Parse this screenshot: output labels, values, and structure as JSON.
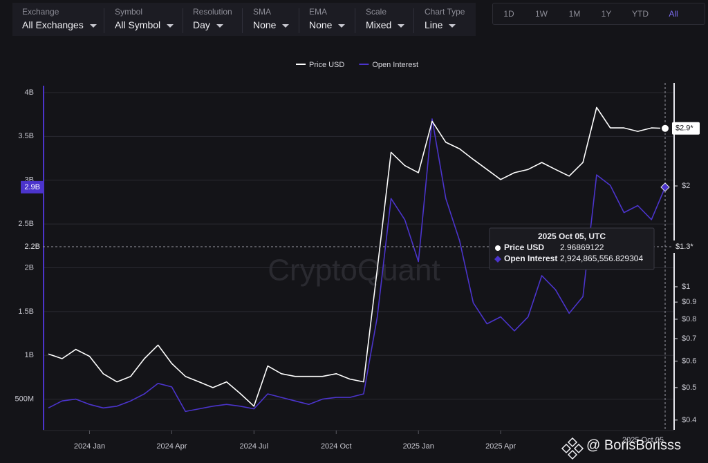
{
  "toolbar": {
    "filters": [
      {
        "label": "Exchange",
        "value": "All Exchanges"
      },
      {
        "label": "Symbol",
        "value": "All Symbol"
      },
      {
        "label": "Resolution",
        "value": "Day"
      },
      {
        "label": "SMA",
        "value": "None"
      },
      {
        "label": "EMA",
        "value": "None"
      },
      {
        "label": "Scale",
        "value": "Mixed"
      },
      {
        "label": "Chart Type",
        "value": "Line"
      }
    ],
    "ranges": [
      "1D",
      "1W",
      "1M",
      "1Y",
      "YTD",
      "All"
    ],
    "active_range": 5
  },
  "chart_data": {
    "type": "line",
    "watermark": "CryptoQuant",
    "credit": "@ BorisBorisss",
    "categories": [
      null,
      null,
      null,
      "2024 Jan",
      null,
      null,
      null,
      null,
      null,
      "2024 Apr",
      null,
      null,
      null,
      null,
      null,
      "2024 Jul",
      null,
      null,
      null,
      null,
      null,
      "2024 Oct",
      null,
      null,
      null,
      null,
      null,
      "2025 Jan",
      null,
      null,
      null,
      null,
      null,
      "2025 Apr",
      null,
      null,
      null,
      null,
      null,
      null,
      null,
      null,
      null,
      null,
      null,
      null
    ],
    "series": [
      {
        "name": "Price USD",
        "color": "#ffffff",
        "axis": "y2",
        "values": [
          0.63,
          0.61,
          0.65,
          0.62,
          0.55,
          0.52,
          0.54,
          0.61,
          0.67,
          0.59,
          0.54,
          0.52,
          0.5,
          0.52,
          0.48,
          0.44,
          0.58,
          0.55,
          0.54,
          0.54,
          0.54,
          0.55,
          0.53,
          0.52,
          1.13,
          2.52,
          2.3,
          2.19,
          3.12,
          2.7,
          2.58,
          2.4,
          2.24,
          2.09,
          2.19,
          2.24,
          2.35,
          2.24,
          2.14,
          2.35,
          3.43,
          2.98,
          2.98,
          2.91,
          2.98,
          2.97
        ]
      },
      {
        "name": "Open Interest",
        "color": "#4b34cc",
        "values": [
          400000000,
          480000000,
          500000000,
          440000000,
          400000000,
          420000000,
          480000000,
          560000000,
          680000000,
          640000000,
          360000000,
          390000000,
          420000000,
          440000000,
          420000000,
          390000000,
          560000000,
          520000000,
          480000000,
          440000000,
          500000000,
          520000000,
          520000000,
          560000000,
          1440000000,
          2790000000,
          2550000000,
          2070000000,
          3700000000,
          2790000000,
          2310000000,
          1600000000,
          1360000000,
          1440000000,
          1280000000,
          1440000000,
          1910000000,
          1750000000,
          1480000000,
          1670000000,
          3060000000,
          2940000000,
          2630000000,
          2710000000,
          2550000000,
          2920000000
        ]
      }
    ],
    "ylim": [
      150000000,
      4110000000
    ],
    "yticks": [
      {
        "value": 500000000,
        "label": "500M"
      },
      {
        "value": 1000000000,
        "label": "1B"
      },
      {
        "value": 1500000000,
        "label": "1.5B"
      },
      {
        "value": 2000000000,
        "label": "2B"
      },
      {
        "value": 2500000000,
        "label": "2.5B"
      },
      {
        "value": 3000000000,
        "label": "3B"
      },
      {
        "value": 3500000000,
        "label": "3.5B"
      },
      {
        "value": 4000000000,
        "label": "4B"
      }
    ],
    "y2lim": [
      0.374,
      4.06
    ],
    "y2log": true,
    "y2ticks": [
      {
        "value": 0.4,
        "label": "$0.4"
      },
      {
        "value": 0.5,
        "label": "$0.5"
      },
      {
        "value": 0.6,
        "label": "$0.6"
      },
      {
        "value": 0.7,
        "label": "$0.7"
      },
      {
        "value": 0.8,
        "label": "$0.8"
      },
      {
        "value": 0.9,
        "label": "$0.9"
      },
      {
        "value": 1,
        "label": "$1"
      },
      {
        "value": 2,
        "label": "$2"
      }
    ],
    "grid": true,
    "cursor": {
      "left_value": "2.9B",
      "left_cursor": "2.2B",
      "right_value": "$2.9*",
      "right_cursor": "$1.3*",
      "x_cursor": "2025 Oct 05"
    },
    "tooltip": {
      "title": "2025 Oct 05, UTC",
      "rows": [
        {
          "name": "Price USD",
          "value": "2.96869122"
        },
        {
          "name": "Open Interest",
          "value": "2,924,865,556.829304"
        }
      ]
    }
  }
}
